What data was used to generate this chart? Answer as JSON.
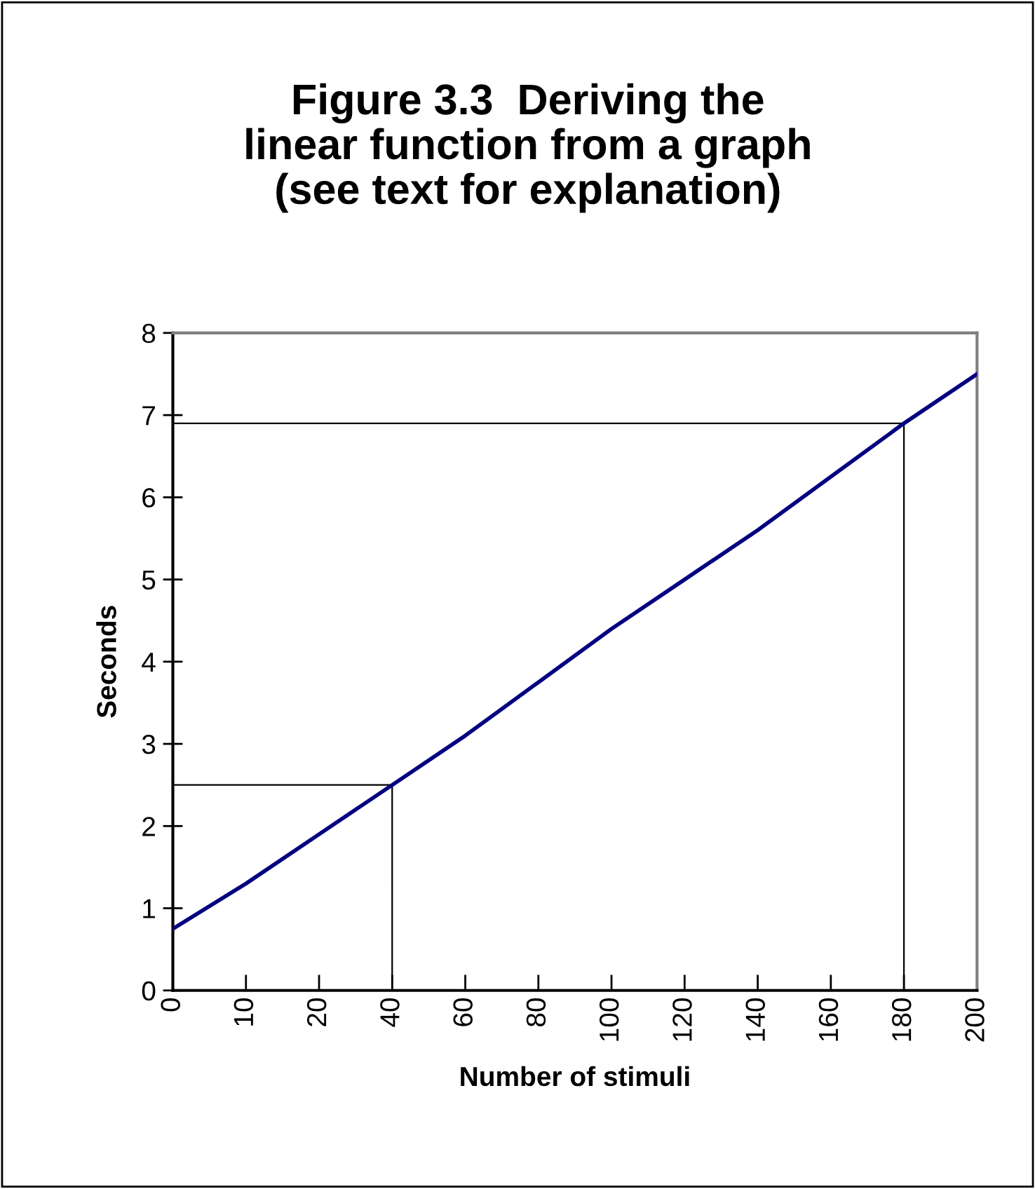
{
  "chart_data": {
    "type": "line",
    "title": "Figure 3.3  Deriving the\nlinear function from a graph\n(see text for explanation)",
    "xlabel": "Number of stimuli",
    "ylabel": "Seconds",
    "categories": [
      "0",
      "10",
      "20",
      "40",
      "60",
      "80",
      "100",
      "120",
      "140",
      "160",
      "180",
      "200"
    ],
    "ylim": [
      0,
      8
    ],
    "yticks": [
      0,
      1,
      2,
      3,
      4,
      5,
      6,
      7,
      8
    ],
    "grid": false,
    "legend": false,
    "marker": "none",
    "line_style": "solid",
    "series": [
      {
        "color": "#000080",
        "values": [
          0.75,
          1.3,
          1.9,
          2.5,
          3.1,
          3.75,
          4.4,
          5.0,
          5.6,
          6.25,
          6.9,
          7.5
        ]
      },
      {
        "color": "#000000",
        "x": [
          "0",
          "40",
          "40"
        ],
        "values": [
          2.5,
          2.5,
          0
        ]
      },
      {
        "color": "#000000",
        "x": [
          "0",
          "180",
          "180"
        ],
        "values": [
          6.9,
          6.9,
          0
        ]
      }
    ]
  }
}
